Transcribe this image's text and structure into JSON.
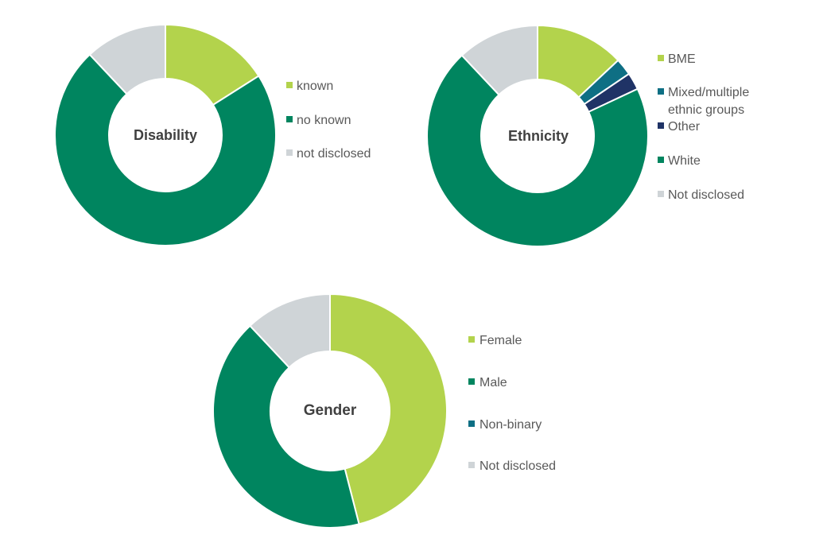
{
  "chart_data": [
    {
      "type": "donut",
      "title": "Disability",
      "categories": [
        "known",
        "no known",
        "not disclosed"
      ],
      "values": [
        16,
        72,
        12
      ],
      "colors": [
        "#b3d34c",
        "#00855f",
        "#cfd4d7"
      ]
    },
    {
      "type": "donut",
      "title": "Ethnicity",
      "categories": [
        "BME",
        "Mixed/multiple ethnic groups",
        "Other",
        "White",
        "Not disclosed"
      ],
      "legend_lines": [
        [
          "BME"
        ],
        [
          "Mixed/multiple",
          "ethnic groups"
        ],
        [
          "Other"
        ],
        [
          "White"
        ],
        [
          "Not disclosed"
        ]
      ],
      "values": [
        13,
        2.5,
        2.5,
        70,
        12
      ],
      "colors": [
        "#b3d34c",
        "#0e6f84",
        "#1f3366",
        "#00855f",
        "#cfd4d7"
      ]
    },
    {
      "type": "donut",
      "title": "Gender",
      "categories": [
        "Female",
        "Male",
        "Non-binary",
        "Not disclosed"
      ],
      "values": [
        46,
        42,
        0,
        12
      ],
      "colors": [
        "#b3d34c",
        "#00855f",
        "#0e6f84",
        "#cfd4d7"
      ]
    }
  ]
}
